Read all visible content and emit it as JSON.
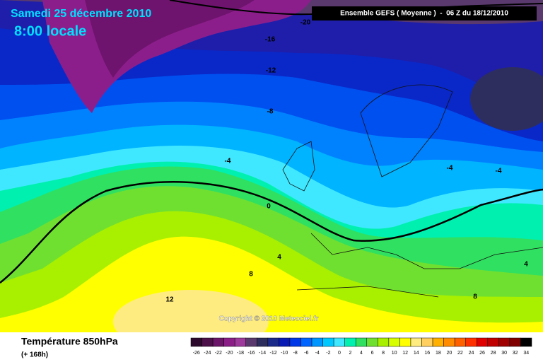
{
  "header": {
    "date": "Samedi 25 décembre 2010",
    "time": "8:00 locale",
    "model": "Ensemble GEFS ( Moyenne )  -  06 Z du 18/12/2010"
  },
  "map": {
    "contour_labels": [
      -20,
      -16,
      -12,
      -8,
      -4,
      0,
      4,
      8,
      12,
      -4,
      -4,
      4,
      8
    ],
    "copyright": "Copyright © 2010 Meteociel.fr"
  },
  "footer": {
    "variable": "Température 850hPa",
    "lead": "(+ 168h)"
  },
  "legend": {
    "values": [
      -26,
      -24,
      -22,
      -20,
      -18,
      -16,
      -14,
      -12,
      -10,
      -8,
      -6,
      -4,
      -2,
      0,
      2,
      4,
      6,
      8,
      10,
      12,
      14,
      16,
      18,
      20,
      22,
      24,
      26,
      28,
      30,
      32,
      34
    ],
    "colors": [
      "#2d0a2d",
      "#4b1148",
      "#6c1669",
      "#8b1f87",
      "#9e3a9c",
      "#5a3a6e",
      "#2e2e5e",
      "#1c2a8a",
      "#0a1ab4",
      "#0037e6",
      "#0064ff",
      "#0096ff",
      "#00c8ff",
      "#40e8ff",
      "#00f0b0",
      "#30e060",
      "#70e030",
      "#a8f000",
      "#d8ff00",
      "#ffff00",
      "#ffec80",
      "#ffd060",
      "#ffb000",
      "#ff8c00",
      "#ff6000",
      "#ff3000",
      "#e00000",
      "#c00000",
      "#a00000",
      "#800000",
      "#000000"
    ]
  }
}
